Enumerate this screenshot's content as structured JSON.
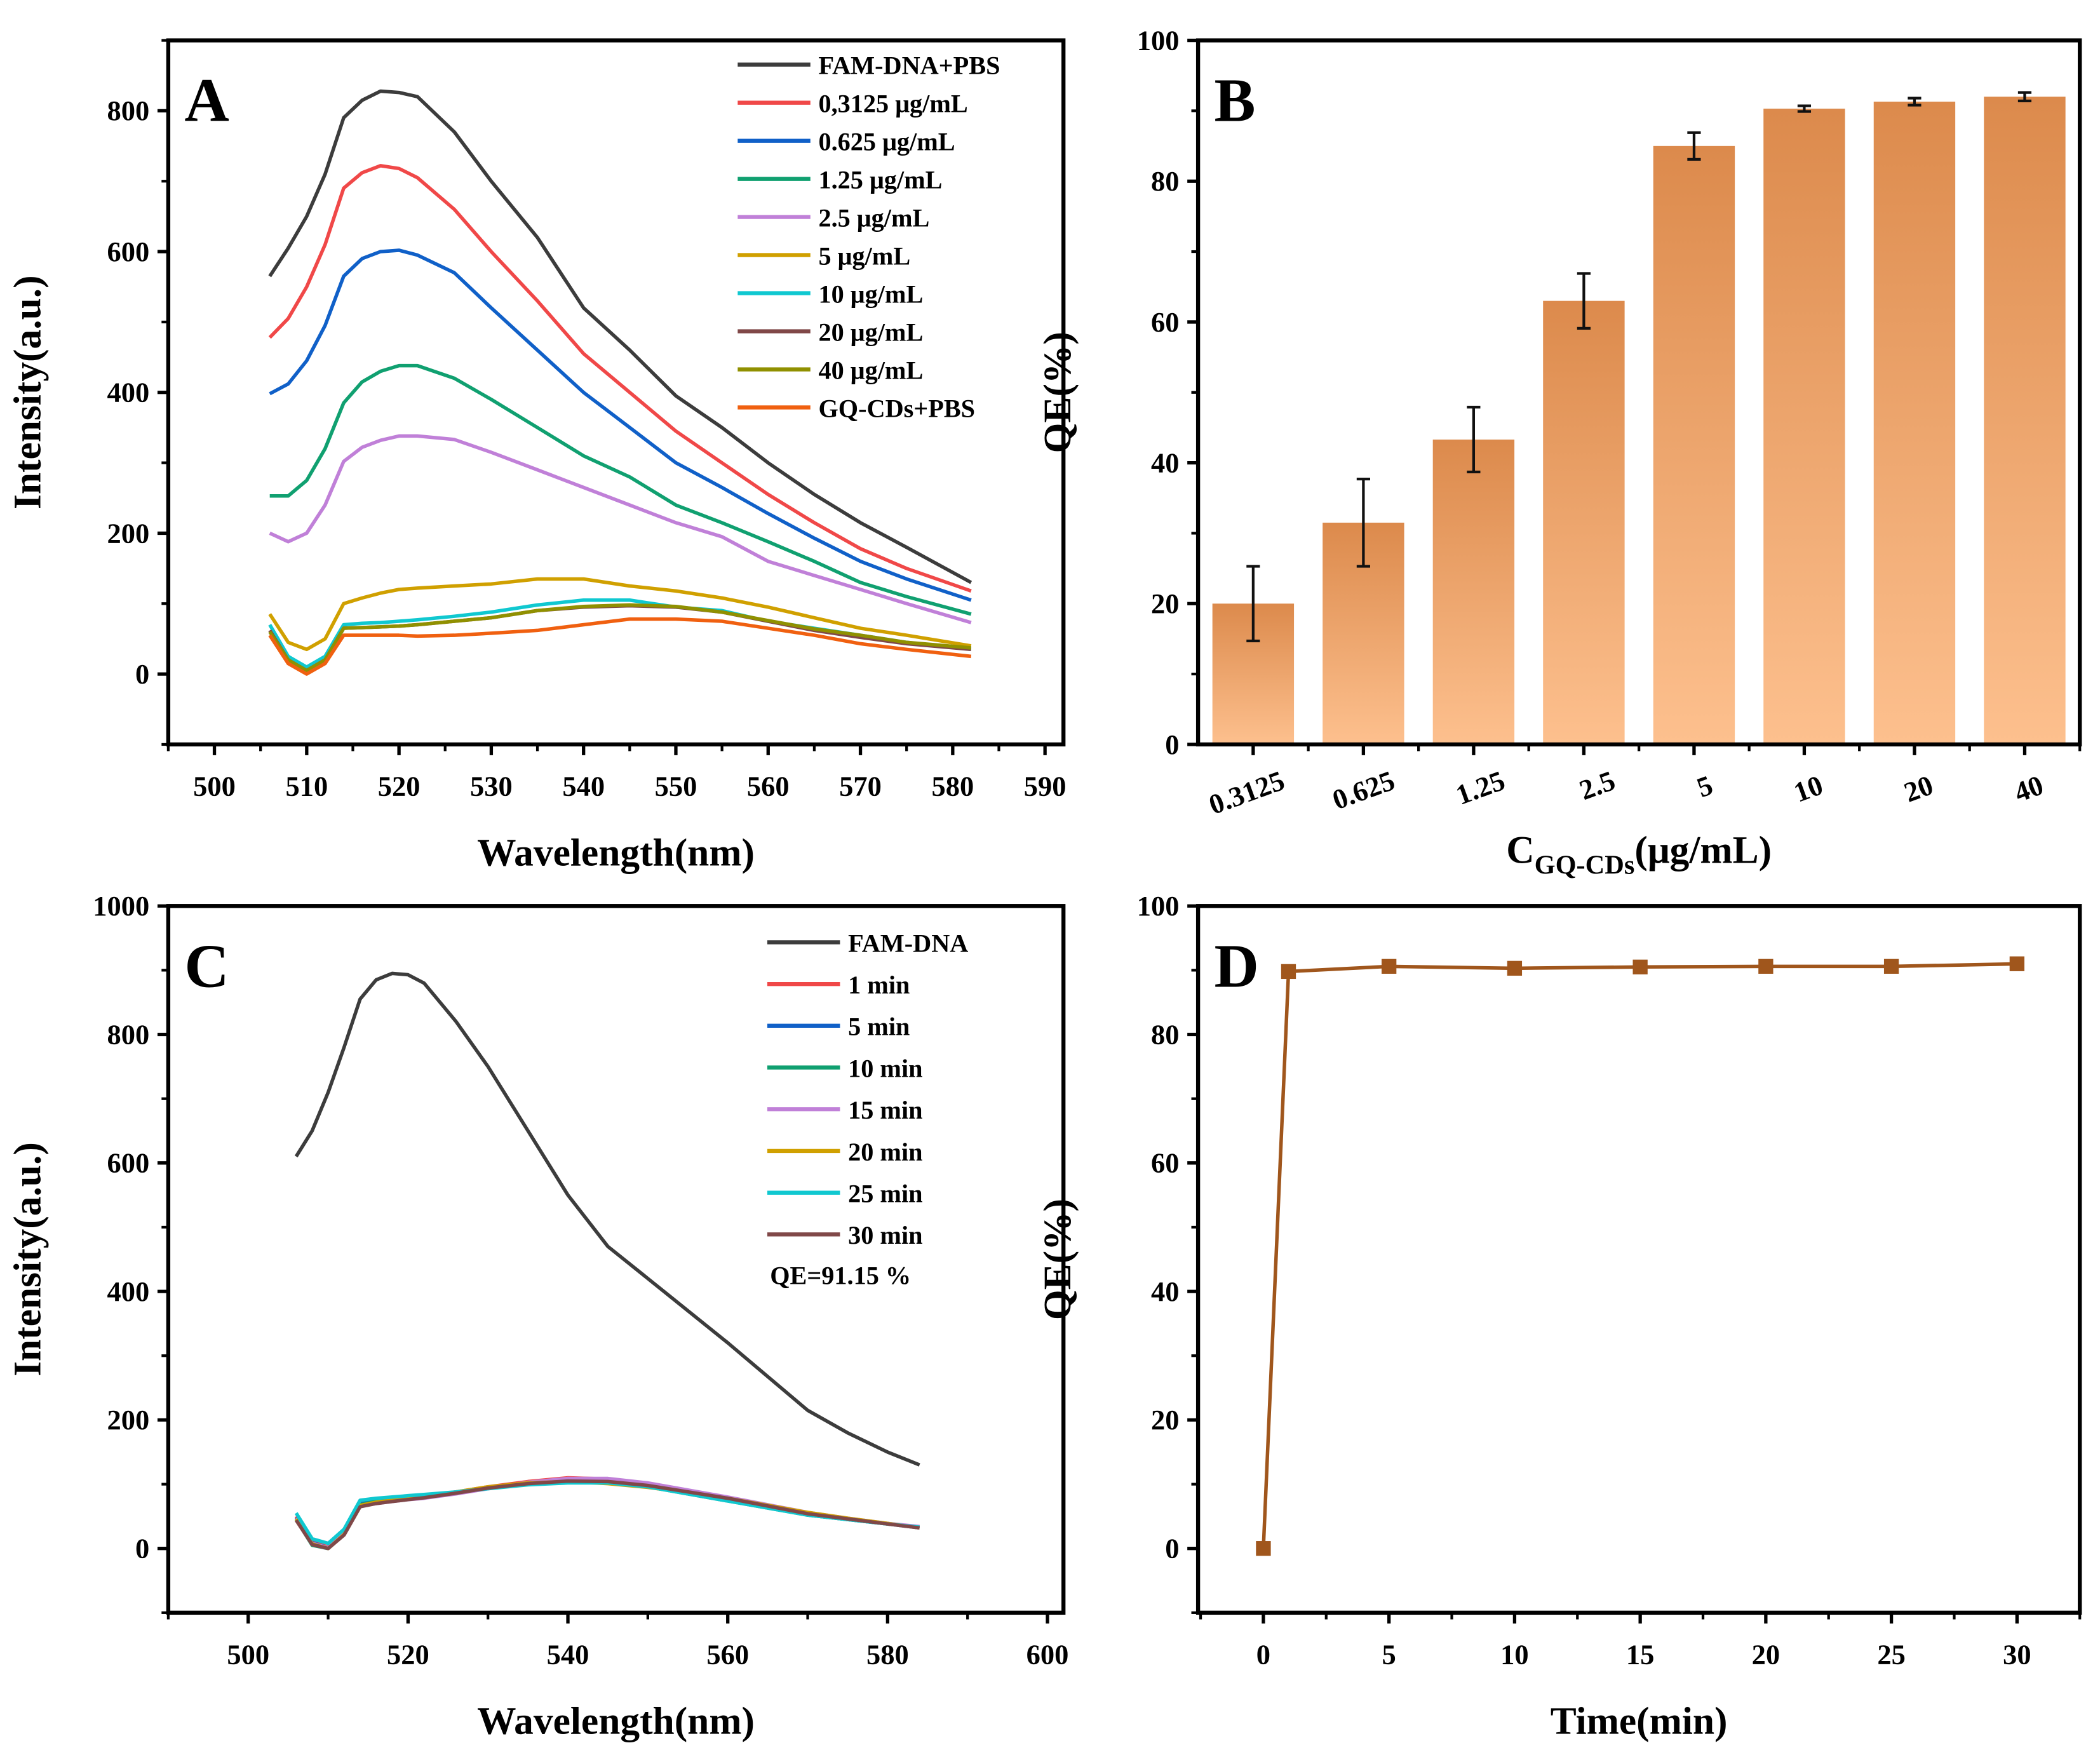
{
  "chart_data": [
    {
      "panel": "A",
      "type": "line",
      "xlabel": "Wavelength(nm)",
      "ylabel": "Intensity(a.u.)",
      "xlim": [
        495,
        592
      ],
      "ylim": [
        -100,
        900
      ],
      "xticks": [
        500,
        510,
        520,
        530,
        540,
        550,
        560,
        570,
        580,
        590
      ],
      "yticks": [
        0,
        200,
        400,
        600,
        800
      ],
      "legend_position": "top-right",
      "x": [
        506,
        508,
        510,
        512,
        514,
        516,
        518,
        520,
        522,
        526,
        530,
        535,
        540,
        545,
        550,
        555,
        560,
        565,
        570,
        575,
        582
      ],
      "series": [
        {
          "name": "FAM-DNA+PBS",
          "color": "#3c3c3c",
          "values": [
            565,
            605,
            650,
            710,
            790,
            815,
            828,
            826,
            820,
            770,
            700,
            620,
            520,
            460,
            395,
            350,
            300,
            255,
            215,
            180,
            130
          ]
        },
        {
          "name": "0,3125 μg/mL",
          "color": "#f04848",
          "values": [
            478,
            505,
            550,
            610,
            690,
            712,
            722,
            718,
            705,
            660,
            600,
            530,
            455,
            400,
            345,
            300,
            255,
            215,
            178,
            150,
            118
          ]
        },
        {
          "name": "0.625 μg/mL",
          "color": "#1060c8",
          "values": [
            398,
            412,
            445,
            495,
            565,
            590,
            600,
            602,
            595,
            570,
            520,
            460,
            400,
            350,
            300,
            265,
            228,
            193,
            160,
            135,
            105
          ]
        },
        {
          "name": "1.25 μg/mL",
          "color": "#10a070",
          "values": [
            253,
            253,
            275,
            320,
            385,
            415,
            430,
            438,
            438,
            420,
            390,
            350,
            310,
            280,
            240,
            215,
            188,
            160,
            130,
            110,
            85
          ]
        },
        {
          "name": "2.5 μg/mL",
          "color": "#c080d8",
          "values": [
            200,
            188,
            200,
            240,
            302,
            322,
            332,
            338,
            338,
            333,
            315,
            290,
            265,
            240,
            215,
            195,
            160,
            140,
            120,
            100,
            73
          ]
        },
        {
          "name": "5 μg/mL",
          "color": "#d0a000",
          "values": [
            85,
            45,
            35,
            50,
            100,
            108,
            115,
            120,
            122,
            125,
            128,
            135,
            135,
            125,
            118,
            108,
            95,
            80,
            65,
            55,
            40
          ]
        },
        {
          "name": "10 μg/mL",
          "color": "#10c8d0",
          "values": [
            70,
            25,
            10,
            25,
            70,
            72,
            73,
            75,
            77,
            82,
            88,
            98,
            105,
            105,
            95,
            90,
            75,
            65,
            55,
            45,
            35
          ]
        },
        {
          "name": "20 μg/mL",
          "color": "#804848",
          "values": [
            62,
            20,
            5,
            20,
            65,
            66,
            67,
            68,
            70,
            75,
            80,
            90,
            95,
            97,
            95,
            88,
            75,
            62,
            52,
            43,
            35
          ]
        },
        {
          "name": "40 μg/mL",
          "color": "#909000",
          "values": [
            60,
            20,
            5,
            20,
            65,
            66,
            67,
            68,
            70,
            75,
            80,
            90,
            96,
            98,
            96,
            88,
            76,
            64,
            55,
            45,
            37
          ]
        },
        {
          "name": "GQ-CDs+PBS",
          "color": "#f06010",
          "values": [
            55,
            15,
            0,
            15,
            55,
            55,
            55,
            55,
            54,
            55,
            58,
            62,
            70,
            78,
            78,
            75,
            65,
            55,
            43,
            35,
            25
          ]
        }
      ]
    },
    {
      "panel": "B",
      "type": "bar",
      "xlabel_main": "C",
      "xlabel_sub": "GQ-CDs",
      "xlabel_unit": "(μg/mL)",
      "ylabel": "QE(%)",
      "ylim": [
        0,
        100
      ],
      "yticks": [
        0,
        20,
        40,
        60,
        80,
        100
      ],
      "categories": [
        "0.3125",
        "0.625",
        "1.25",
        "2.5",
        "5",
        "10",
        "20",
        "40"
      ],
      "values": [
        20,
        31.5,
        43.3,
        63,
        85,
        90.3,
        91.3,
        92
      ],
      "errors": [
        5.3,
        6.2,
        4.6,
        3.9,
        1.9,
        0.4,
        0.5,
        0.6
      ],
      "bar_color_top": "#dc8a4c",
      "bar_color_bottom": "#fdc08e"
    },
    {
      "panel": "C",
      "type": "line",
      "xlabel": "Wavelength(nm)",
      "ylabel": "Intensity(a.u.)",
      "xlim": [
        490,
        602
      ],
      "ylim": [
        -100,
        1000
      ],
      "xticks": [
        500,
        520,
        540,
        560,
        580,
        600
      ],
      "yticks": [
        0,
        200,
        400,
        600,
        800,
        1000
      ],
      "legend_position": "top-right",
      "annotation": "QE=91.15 %",
      "x": [
        506,
        508,
        510,
        512,
        514,
        516,
        518,
        520,
        522,
        526,
        530,
        535,
        540,
        545,
        550,
        560,
        570,
        575,
        580,
        584
      ],
      "series": [
        {
          "name": "FAM-DNA",
          "color": "#3c3c3c",
          "values": [
            610,
            650,
            710,
            780,
            855,
            885,
            895,
            893,
            880,
            820,
            750,
            650,
            550,
            470,
            420,
            320,
            215,
            180,
            150,
            130
          ]
        },
        {
          "name": "1 min",
          "color": "#f04848",
          "values": [
            50,
            10,
            2,
            25,
            70,
            75,
            78,
            80,
            82,
            88,
            96,
            104,
            110,
            108,
            100,
            78,
            54,
            46,
            39,
            33
          ]
        },
        {
          "name": "5 min",
          "color": "#1060c8",
          "values": [
            48,
            9,
            1,
            24,
            69,
            74,
            77,
            79,
            81,
            87,
            95,
            102,
            106,
            104,
            98,
            76,
            52,
            45,
            38,
            32
          ]
        },
        {
          "name": "10 min",
          "color": "#10a070",
          "values": [
            45,
            5,
            0,
            22,
            68,
            73,
            76,
            79,
            81,
            87,
            94,
            101,
            104,
            102,
            96,
            74,
            52,
            45,
            38,
            33
          ]
        },
        {
          "name": "15 min",
          "color": "#c080d8",
          "values": [
            47,
            8,
            1,
            23,
            66,
            70,
            73,
            76,
            78,
            85,
            93,
            103,
            109,
            109,
            102,
            80,
            56,
            47,
            39,
            34
          ]
        },
        {
          "name": "20 min",
          "color": "#d0a000",
          "values": [
            46,
            7,
            0,
            22,
            67,
            72,
            75,
            78,
            81,
            88,
            96,
            102,
            104,
            101,
            95,
            78,
            56,
            47,
            39,
            32
          ]
        },
        {
          "name": "25 min",
          "color": "#10c8d0",
          "values": [
            55,
            15,
            8,
            30,
            75,
            78,
            80,
            82,
            84,
            88,
            93,
            99,
            102,
            102,
            96,
            74,
            52,
            45,
            38,
            33
          ]
        },
        {
          "name": "30 min",
          "color": "#804848",
          "values": [
            44,
            6,
            0,
            21,
            65,
            70,
            73,
            76,
            79,
            86,
            94,
            101,
            105,
            104,
            98,
            78,
            54,
            46,
            38,
            32
          ]
        }
      ]
    },
    {
      "panel": "D",
      "type": "line",
      "xlabel": "Time(min)",
      "ylabel": "QE(%)",
      "xlim": [
        -2.6,
        32.5
      ],
      "ylim": [
        -10,
        100
      ],
      "xticks": [
        0,
        5,
        10,
        15,
        20,
        25,
        30
      ],
      "yticks": [
        0,
        20,
        40,
        60,
        80,
        100
      ],
      "x": [
        0,
        1,
        5,
        10,
        15,
        20,
        25,
        30
      ],
      "values": [
        0,
        89.8,
        90.6,
        90.3,
        90.5,
        90.6,
        90.6,
        91
      ],
      "color": "#a0561c",
      "marker": "square"
    }
  ]
}
